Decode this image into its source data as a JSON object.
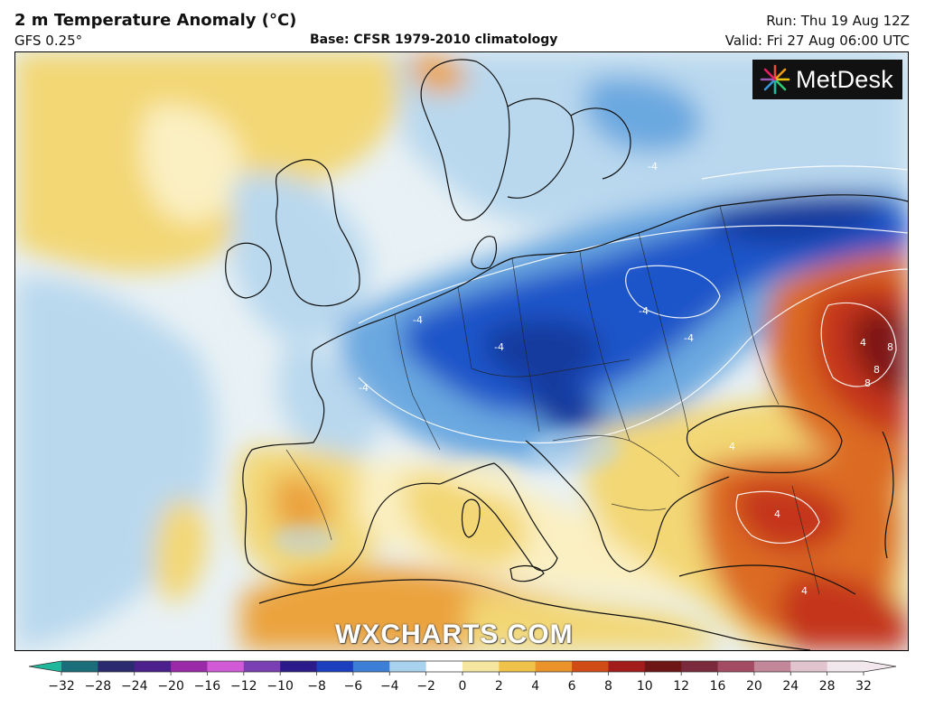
{
  "header": {
    "title": "2 m Temperature Anomaly (°C)",
    "model": "GFS 0.25°",
    "base": "Base: CFSR 1979-2010 climatology",
    "run": "Run: Thu 19 Aug 12Z",
    "valid": "Valid: Fri 27 Aug 06:00 UTC"
  },
  "logo": {
    "text": "MetDesk"
  },
  "watermark": {
    "text": "WXCHARTS.COM"
  },
  "contour_labels": [
    "-4",
    "-4",
    "-4",
    "-4",
    "-4",
    "-4",
    "4",
    "4",
    "8",
    "8",
    "8",
    "4",
    "4"
  ],
  "colorbar": {
    "ticks": [
      -32,
      -28,
      -24,
      -20,
      -16,
      -12,
      -10,
      -8,
      -6,
      -4,
      -2,
      0,
      2,
      4,
      6,
      8,
      10,
      12,
      16,
      20,
      24,
      28,
      32
    ],
    "tick_labels": [
      "−32",
      "−28",
      "−24",
      "−20",
      "−16",
      "−12",
      "−10",
      "−8",
      "−6",
      "−4",
      "−2",
      "0",
      "2",
      "4",
      "6",
      "8",
      "10",
      "12",
      "16",
      "20",
      "24",
      "28",
      "32"
    ],
    "colors": [
      "#1fb89a",
      "#1a6e7a",
      "#2a2a6e",
      "#4b1f8c",
      "#9a2aa8",
      "#d25ad6",
      "#7a3fb3",
      "#2a1a8a",
      "#1c3fbf",
      "#3d7fd6",
      "#a9d2ee",
      "#ffffff",
      "#f6e7a0",
      "#efc24a",
      "#e9932a",
      "#d14b14",
      "#a31c1c",
      "#6e1515",
      "#7a2a3a",
      "#a24b63",
      "#c3879a",
      "#e2c4cf",
      "#f2e7ec"
    ]
  },
  "map": {
    "colors": {
      "ocean_neutral": "#e8f1f5",
      "light_blue": "#b9d8ee",
      "mid_blue": "#6aa8e0",
      "deep_blue": "#1f55c9",
      "navy": "#143a9e",
      "yellow": "#f3d775",
      "pale_yellow": "#fbf0c2",
      "orange": "#eba33d",
      "dark_orange": "#dc6a22",
      "red": "#c4361b",
      "dark_red": "#7e1414"
    }
  }
}
